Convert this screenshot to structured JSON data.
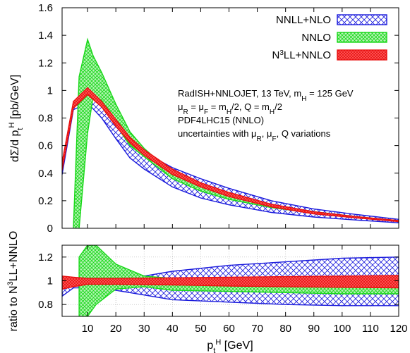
{
  "chart_data": [
    {
      "type": "area",
      "panel": "main",
      "ylabel_parts": {
        "base": "dΣ/d p",
        "sub": "t",
        "sup": "H",
        "unit": " [pb/GeV]"
      },
      "xlim": [
        1,
        120
      ],
      "ylim": [
        0,
        1.6
      ],
      "yticks": [
        "0",
        "0.2",
        "0.4",
        "0.6",
        "0.8",
        "1",
        "1.2",
        "1.4",
        "1.6"
      ],
      "legend_position": "top-right",
      "annotations": [
        "RadISH+NNLOJET, 13 TeV, m_H = 125 GeV",
        "μ_R = μ_F = m_H/2, Q = m_H/2",
        "PDF4LHC15 (NNLO)",
        "uncertainties with μ_R, μ_F, Q variations"
      ],
      "series": [
        {
          "name": "NNLL+NLO",
          "color": "#1a1adc",
          "x": [
            1,
            5,
            10,
            15,
            20,
            25,
            30,
            40,
            50,
            60,
            75,
            90,
            105,
            120
          ],
          "lower": [
            0.39,
            0.86,
            0.91,
            0.8,
            0.65,
            0.51,
            0.43,
            0.3,
            0.22,
            0.17,
            0.115,
            0.082,
            0.06,
            0.04
          ],
          "upper": [
            0.43,
            0.9,
            0.98,
            0.9,
            0.76,
            0.64,
            0.55,
            0.44,
            0.36,
            0.29,
            0.2,
            0.14,
            0.1,
            0.065
          ]
        },
        {
          "name": "NNLO",
          "color": "#18d818",
          "x": [
            5,
            7,
            10,
            12,
            15,
            20,
            25,
            30,
            40,
            50,
            60,
            75,
            90,
            105,
            120
          ],
          "lower": [
            0,
            0,
            0.69,
            0.96,
            0.93,
            0.75,
            0.6,
            0.52,
            0.36,
            0.27,
            0.21,
            0.15,
            0.11,
            0.08,
            0.05
          ],
          "upper": [
            0,
            1.1,
            1.37,
            1.25,
            1.13,
            0.9,
            0.7,
            0.58,
            0.4,
            0.31,
            0.24,
            0.17,
            0.12,
            0.085,
            0.055
          ]
        },
        {
          "name": "N^3LL+NNLO",
          "color": "#e81010",
          "x": [
            1,
            5,
            10,
            15,
            20,
            25,
            30,
            40,
            50,
            60,
            75,
            90,
            105,
            120
          ],
          "lower": [
            0.42,
            0.87,
            0.97,
            0.88,
            0.74,
            0.62,
            0.53,
            0.39,
            0.3,
            0.23,
            0.155,
            0.105,
            0.075,
            0.048
          ],
          "upper": [
            0.48,
            0.92,
            1.02,
            0.92,
            0.79,
            0.66,
            0.57,
            0.43,
            0.33,
            0.26,
            0.175,
            0.12,
            0.085,
            0.056
          ]
        }
      ]
    },
    {
      "type": "area",
      "panel": "ratio",
      "ylabel_parts": {
        "base": "ratio to N",
        "sup": "3",
        "rest": "LL+NNLO"
      },
      "xlabel_parts": {
        "base": "p",
        "sub": "t",
        "sup": "H",
        "unit": " [GeV]"
      },
      "xlim": [
        1,
        120
      ],
      "ylim": [
        0.7,
        1.3
      ],
      "xticks": [
        "10",
        "20",
        "30",
        "40",
        "50",
        "60",
        "70",
        "80",
        "90",
        "100",
        "110",
        "120"
      ],
      "yticks": [
        "0.8",
        "1",
        "1.2"
      ],
      "series": [
        {
          "name": "NNLL+NLO",
          "color": "#1a1adc",
          "x": [
            1,
            5,
            10,
            20,
            30,
            40,
            60,
            80,
            100,
            120
          ],
          "lower": [
            0.87,
            0.94,
            0.94,
            0.92,
            0.88,
            0.84,
            0.82,
            0.8,
            0.79,
            0.79
          ],
          "upper": [
            0.94,
            0.96,
            0.97,
            1.0,
            1.04,
            1.08,
            1.13,
            1.16,
            1.19,
            1.2
          ]
        },
        {
          "name": "NNLO",
          "color": "#18d818",
          "x": [
            7,
            10,
            13,
            20,
            30,
            40,
            60,
            80,
            100,
            120
          ],
          "lower": [
            0.7,
            0.7,
            0.8,
            0.93,
            0.95,
            0.92,
            0.91,
            0.9,
            0.89,
            0.89
          ],
          "upper": [
            1.2,
            1.3,
            1.3,
            1.14,
            1.04,
            1.02,
            1.02,
            1.02,
            1.02,
            1.02
          ]
        },
        {
          "name": "N^3LL+NNLO",
          "color": "#e81010",
          "x": [
            1,
            5,
            10,
            20,
            40,
            60,
            80,
            100,
            120
          ],
          "lower": [
            0.93,
            0.95,
            0.97,
            0.97,
            0.965,
            0.955,
            0.95,
            0.945,
            0.94
          ],
          "upper": [
            1.04,
            1.03,
            1.02,
            1.02,
            1.025,
            1.03,
            1.035,
            1.04,
            1.045
          ]
        }
      ]
    }
  ]
}
